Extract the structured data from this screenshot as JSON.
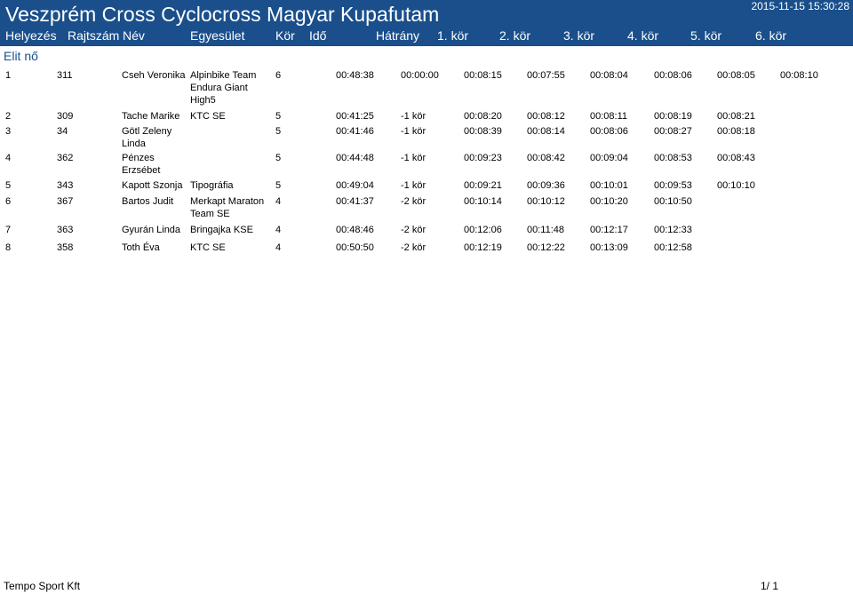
{
  "header": {
    "title": "Veszprém Cross Cyclocross Magyar Kupafutam",
    "datetime": "2015-11-15 15:30:28"
  },
  "columns": [
    "Helyezés",
    "Rajtszám",
    "Név",
    "Egyesület",
    "Kör",
    "Idő",
    "Hátrány",
    "1. kör",
    "2. kör",
    "3. kör",
    "4. kör",
    "5. kör",
    "6. kör"
  ],
  "category": "Elit nő",
  "rows": [
    {
      "place": "1",
      "bib": "311",
      "name": "Cseh Veronika",
      "club": "Alpinbike Team Endura Giant High5",
      "laps": "6",
      "time": "00:48:38",
      "gap": "00:00:00",
      "lap_times": [
        "00:08:15",
        "00:07:55",
        "00:08:04",
        "00:08:06",
        "00:08:05",
        "00:08:10"
      ]
    },
    {
      "place": "2",
      "bib": "309",
      "name": "Tache Marike",
      "club": "KTC SE",
      "laps": "5",
      "time": "00:41:25",
      "gap": "-1 kör",
      "lap_times": [
        "00:08:20",
        "00:08:12",
        "00:08:11",
        "00:08:19",
        "00:08:21"
      ]
    },
    {
      "place": "3",
      "bib": "34",
      "name": "Götl Zeleny Linda",
      "club": "",
      "laps": "5",
      "time": "00:41:46",
      "gap": "-1 kör",
      "lap_times": [
        "00:08:39",
        "00:08:14",
        "00:08:06",
        "00:08:27",
        "00:08:18"
      ]
    },
    {
      "place": "4",
      "bib": "362",
      "name": "Pénzes Erzsébet",
      "club": "",
      "laps": "5",
      "time": "00:44:48",
      "gap": "-1 kör",
      "lap_times": [
        "00:09:23",
        "00:08:42",
        "00:09:04",
        "00:08:53",
        "00:08:43"
      ]
    },
    {
      "place": "5",
      "bib": "343",
      "name": "Kapott Szonja",
      "club": "Tipográfia",
      "laps": "5",
      "time": "00:49:04",
      "gap": "-1 kör",
      "lap_times": [
        "00:09:21",
        "00:09:36",
        "00:10:01",
        "00:09:53",
        "00:10:10"
      ]
    },
    {
      "place": "6",
      "bib": "367",
      "name": "Bartos Judit",
      "club": "Merkapt Maraton Team SE",
      "laps": "4",
      "time": "00:41:37",
      "gap": "-2 kör",
      "lap_times": [
        "00:10:14",
        "00:10:12",
        "00:10:20",
        "00:10:50"
      ]
    },
    {
      "place": "7",
      "bib": "363",
      "name": "Gyurán Linda",
      "club": "Bringajka KSE",
      "laps": "4",
      "time": "00:48:46",
      "gap": "-2 kör",
      "lap_times": [
        "00:12:06",
        "00:11:48",
        "00:12:17",
        "00:12:33"
      ]
    },
    {
      "place": "8",
      "bib": "358",
      "name": "Toth Éva",
      "club": "KTC SE",
      "laps": "4",
      "time": "00:50:50",
      "gap": "-2 kör",
      "lap_times": [
        "00:12:19",
        "00:12:22",
        "00:13:09",
        "00:12:58"
      ]
    }
  ],
  "footer": {
    "company": "Tempo Sport Kft",
    "page": "1/ 1"
  },
  "colors": {
    "header_band": "#1a4f8c",
    "category_text": "#1a4f8c"
  }
}
